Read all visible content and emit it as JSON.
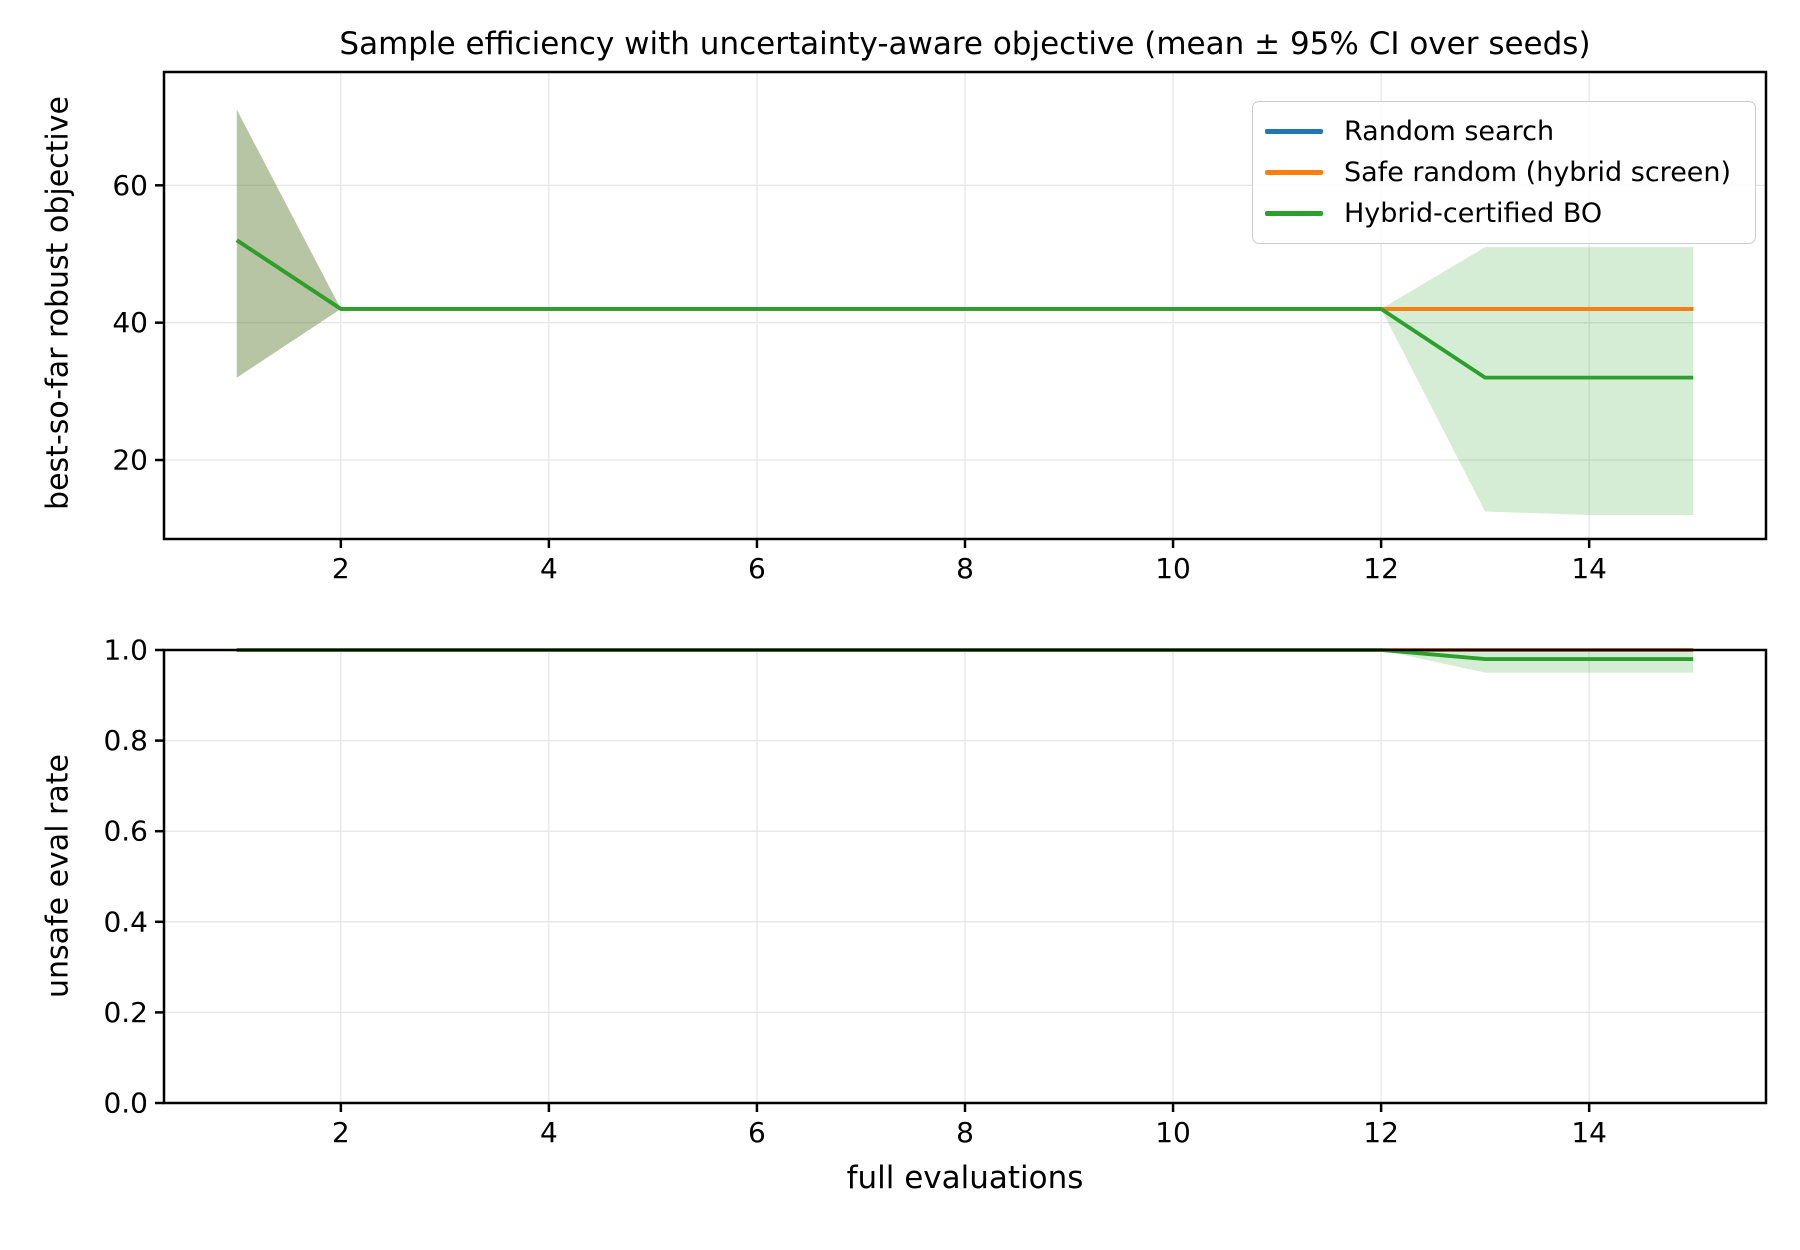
{
  "title": "Sample efficiency with uncertainty-aware objective (mean ± 95% CI over seeds)",
  "legend": {
    "entries": [
      {
        "label": "Random search",
        "color": "#1f77b4"
      },
      {
        "label": "Safe random (hybrid screen)",
        "color": "#ff7f0e"
      },
      {
        "label": "Hybrid-certified BO",
        "color": "#2ca02c"
      }
    ]
  },
  "style": {
    "background": "#ffffff",
    "grid_color": "#e6e6e6",
    "spine_color": "#000000",
    "text_color": "#000000",
    "band_alpha": 0.2,
    "line_width": 3.8,
    "accent_blue": "#1f77b4",
    "accent_orange": "#ff7f0e",
    "accent_green": "#2ca02c"
  },
  "chart_data": [
    {
      "type": "line",
      "title": "Sample efficiency with uncertainty-aware objective (mean ± 95% CI over seeds)",
      "ylabel": "best-so-far robust objective",
      "xlabel": "",
      "grid": true,
      "legend_position": "upper right",
      "x": [
        1,
        2,
        3,
        4,
        5,
        6,
        7,
        8,
        9,
        10,
        11,
        12,
        13,
        14,
        15
      ],
      "xlim": [
        0.3,
        15.7
      ],
      "ylim": [
        8.5,
        76.5
      ],
      "xticks": [
        2,
        4,
        6,
        8,
        10,
        12,
        14
      ],
      "xtick_labels": [
        "2",
        "4",
        "6",
        "8",
        "10",
        "12",
        "14"
      ],
      "yticks": [
        20,
        40,
        60
      ],
      "ytick_labels": [
        "20",
        "40",
        "60"
      ],
      "series": [
        {
          "name": "Random search",
          "color": "#1f77b4",
          "mean": [
            52,
            42,
            42,
            42,
            42,
            42,
            42,
            42,
            42,
            42,
            42,
            42,
            42,
            42,
            42
          ],
          "ci_lo": [
            32,
            42,
            42,
            42,
            42,
            42,
            42,
            42,
            42,
            42,
            42,
            42,
            42,
            42,
            42
          ],
          "ci_hi": [
            71,
            42,
            42,
            42,
            42,
            42,
            42,
            42,
            42,
            42,
            42,
            42,
            42,
            42,
            42
          ]
        },
        {
          "name": "Safe random (hybrid screen)",
          "color": "#ff7f0e",
          "mean": [
            52,
            42,
            42,
            42,
            42,
            42,
            42,
            42,
            42,
            42,
            42,
            42,
            42,
            42,
            42
          ],
          "ci_lo": [
            32,
            42,
            42,
            42,
            42,
            42,
            42,
            42,
            42,
            42,
            42,
            42,
            42,
            42,
            42
          ],
          "ci_hi": [
            71,
            42,
            42,
            42,
            42,
            42,
            42,
            42,
            42,
            42,
            42,
            42,
            42,
            42,
            42
          ]
        },
        {
          "name": "Hybrid-certified BO",
          "color": "#2ca02c",
          "mean": [
            52,
            42,
            42,
            42,
            42,
            42,
            42,
            42,
            42,
            42,
            42,
            42,
            32,
            32,
            32
          ],
          "ci_lo": [
            32,
            42,
            42,
            42,
            42,
            42,
            42,
            42,
            42,
            42,
            42,
            42,
            12.5,
            12,
            12
          ],
          "ci_hi": [
            71,
            42,
            42,
            42,
            42,
            42,
            42,
            42,
            42,
            42,
            42,
            42,
            51,
            51,
            51
          ]
        }
      ]
    },
    {
      "type": "line",
      "ylabel": "unsafe eval rate",
      "xlabel": "full evaluations",
      "grid": true,
      "x": [
        1,
        2,
        3,
        4,
        5,
        6,
        7,
        8,
        9,
        10,
        11,
        12,
        13,
        14,
        15
      ],
      "xlim": [
        0.3,
        15.7
      ],
      "ylim": [
        0.0,
        1.0
      ],
      "xticks": [
        2,
        4,
        6,
        8,
        10,
        12,
        14
      ],
      "xtick_labels": [
        "2",
        "4",
        "6",
        "8",
        "10",
        "12",
        "14"
      ],
      "yticks": [
        0.0,
        0.2,
        0.4,
        0.6,
        0.8,
        1.0
      ],
      "ytick_labels": [
        "0.0",
        "0.2",
        "0.4",
        "0.6",
        "0.8",
        "1.0"
      ],
      "series": [
        {
          "name": "Random search",
          "color": "#1f77b4",
          "mean": [
            1,
            1,
            1,
            1,
            1,
            1,
            1,
            1,
            1,
            1,
            1,
            1,
            1,
            1,
            1
          ],
          "ci_lo": [
            1,
            1,
            1,
            1,
            1,
            1,
            1,
            1,
            1,
            1,
            1,
            1,
            1,
            1,
            1
          ],
          "ci_hi": [
            1,
            1,
            1,
            1,
            1,
            1,
            1,
            1,
            1,
            1,
            1,
            1,
            1,
            1,
            1
          ]
        },
        {
          "name": "Safe random (hybrid screen)",
          "color": "#ff7f0e",
          "mean": [
            1,
            1,
            1,
            1,
            1,
            1,
            1,
            1,
            1,
            1,
            1,
            1,
            1,
            1,
            1
          ],
          "ci_lo": [
            1,
            1,
            1,
            1,
            1,
            1,
            1,
            1,
            1,
            1,
            1,
            1,
            1,
            1,
            1
          ],
          "ci_hi": [
            1,
            1,
            1,
            1,
            1,
            1,
            1,
            1,
            1,
            1,
            1,
            1,
            1,
            1,
            1
          ]
        },
        {
          "name": "Hybrid-certified BO",
          "color": "#2ca02c",
          "mean": [
            1,
            1,
            1,
            1,
            1,
            1,
            1,
            1,
            1,
            1,
            1,
            1,
            0.98,
            0.98,
            0.98
          ],
          "ci_lo": [
            1,
            1,
            1,
            1,
            1,
            1,
            1,
            1,
            1,
            1,
            1,
            1,
            0.95,
            0.95,
            0.95
          ],
          "ci_hi": [
            1,
            1,
            1,
            1,
            1,
            1,
            1,
            1,
            1,
            1,
            1,
            1,
            1,
            1,
            1
          ]
        }
      ]
    }
  ]
}
